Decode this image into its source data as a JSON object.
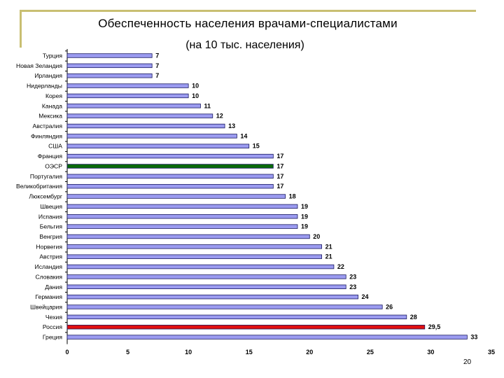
{
  "title": "Обеспеченность населения врачами-специалистами",
  "subtitle": "(на 10 тыс. населения)",
  "page_number": "20",
  "chart_data": {
    "type": "bar",
    "orientation": "horizontal",
    "title": "Обеспеченность населения врачами-специалистами",
    "subtitle": "(на 10 тыс. населения)",
    "xlabel": "",
    "ylabel": "",
    "xlim": [
      0,
      35
    ],
    "x_ticks": [
      0,
      5,
      10,
      15,
      20,
      25,
      30,
      35
    ],
    "grid": false,
    "legend": "none",
    "categories": [
      "Турция",
      "Новая Зеландия",
      "Ирландия",
      "Нидерланды",
      "Корея",
      "Канада",
      "Мексика",
      "Австралия",
      "Финляндия",
      "США",
      "Франция",
      "ОЭСР",
      "Португалия",
      "Великобритания",
      "Люксембург",
      "Швеция",
      "Испания",
      "Бельгия",
      "Венгрия",
      "Норвегия",
      "Австрия",
      "Исландия",
      "Словакия",
      "Дания",
      "Германия",
      "Швейцария",
      "Чехия",
      "Россия",
      "Греция"
    ],
    "values": [
      7,
      7,
      7,
      10,
      10,
      11,
      12,
      13,
      14,
      15,
      17,
      17,
      17,
      17,
      18,
      19,
      19,
      19,
      20,
      21,
      21,
      22,
      23,
      23,
      24,
      26,
      28,
      29.5,
      33
    ],
    "value_labels": [
      "7",
      "7",
      "7",
      "10",
      "10",
      "11",
      "12",
      "13",
      "14",
      "15",
      "17",
      "17",
      "17",
      "17",
      "18",
      "19",
      "19",
      "19",
      "20",
      "21",
      "21",
      "22",
      "23",
      "23",
      "24",
      "26",
      "28",
      "29,5",
      "33"
    ],
    "colors": {
      "default": "#9b9bf0",
      "border": "#1a1a60",
      "highlight": {
        "ОЭСР": "#0a6a0a",
        "Россия": "#e01010"
      }
    }
  }
}
